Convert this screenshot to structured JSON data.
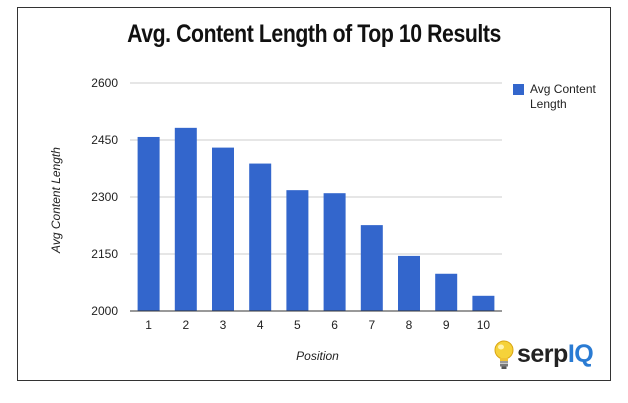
{
  "chart_data": {
    "type": "bar",
    "title": "Avg. Content Length of Top 10 Results",
    "xlabel": "Position",
    "ylabel": "Avg Content Length",
    "categories": [
      "1",
      "2",
      "3",
      "4",
      "5",
      "6",
      "7",
      "8",
      "9",
      "10"
    ],
    "series": [
      {
        "name": "Avg Content Length",
        "values": [
          2458,
          2482,
          2430,
          2388,
          2318,
          2310,
          2226,
          2145,
          2098,
          2040
        ],
        "color": "#3366cc"
      }
    ],
    "ylim": [
      2000,
      2600
    ],
    "yticks": [
      "2600",
      "2450",
      "2300",
      "2150",
      "2000"
    ],
    "grid": true,
    "legend_position": "right"
  },
  "branding": {
    "logo_part1": "serp",
    "logo_part2": "IQ",
    "logo_icon": "lightbulb-icon"
  }
}
